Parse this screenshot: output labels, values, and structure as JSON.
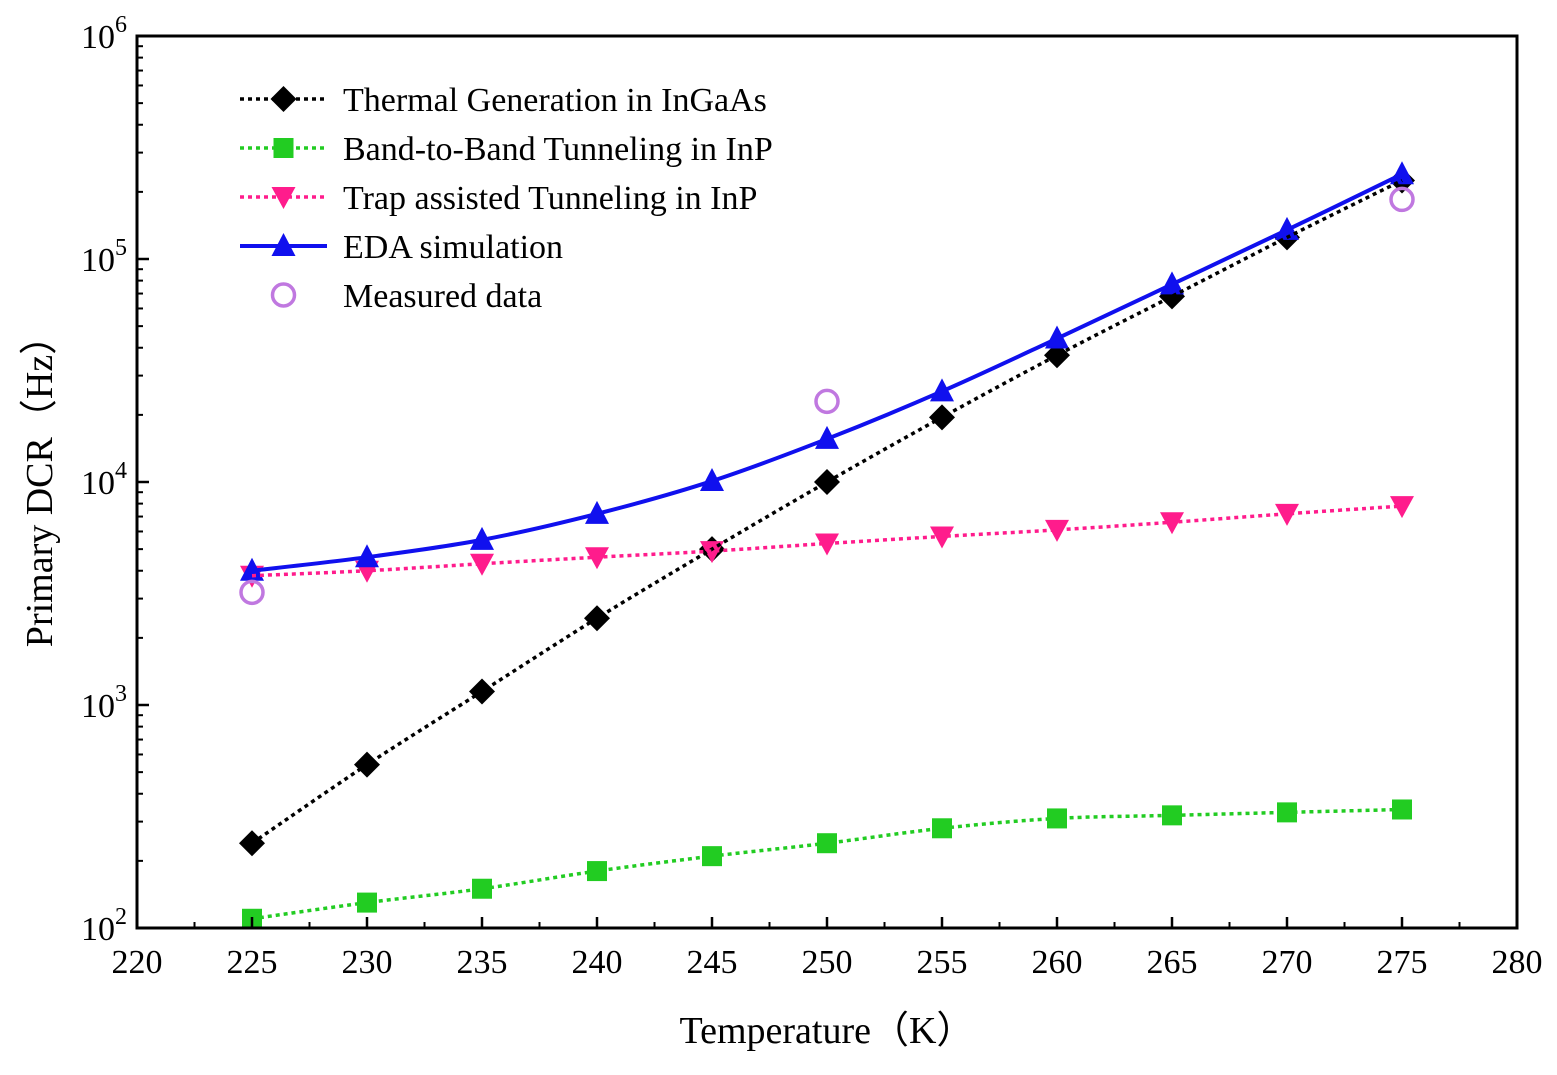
{
  "chart_data": {
    "type": "line",
    "title": "",
    "xlabel": "Temperature（K）",
    "ylabel": "Primary DCR（Hz）",
    "xlim": [
      220,
      280
    ],
    "ylim": [
      100,
      1000000
    ],
    "yscale": "log",
    "grid": false,
    "legend_position": "top-left",
    "x_ticks": [
      "220",
      "225",
      "230",
      "235",
      "240",
      "245",
      "250",
      "255",
      "260",
      "265",
      "270",
      "275",
      "280"
    ],
    "x_tick_values": [
      220,
      225,
      230,
      235,
      240,
      245,
      250,
      255,
      260,
      265,
      270,
      275,
      280
    ],
    "y_ticks": [
      {
        "value": 100,
        "base": "10",
        "exp": "2"
      },
      {
        "value": 1000,
        "base": "10",
        "exp": "3"
      },
      {
        "value": 10000,
        "base": "10",
        "exp": "4"
      },
      {
        "value": 100000,
        "base": "10",
        "exp": "5"
      },
      {
        "value": 1000000,
        "base": "10",
        "exp": "6"
      }
    ],
    "series": [
      {
        "name": "Thermal Generation in InGaAs",
        "color": "#000000",
        "line": "dotted",
        "marker": "diamond",
        "x": [
          225,
          230,
          235,
          240,
          245,
          250,
          255,
          260,
          265,
          270,
          275
        ],
        "values": [
          240,
          540,
          1150,
          2450,
          5000,
          10000,
          19500,
          37000,
          68000,
          125000,
          225000
        ]
      },
      {
        "name": "Band-to-Band Tunneling in InP",
        "color": "#22cc22",
        "line": "dotted",
        "marker": "square",
        "x": [
          225,
          230,
          235,
          240,
          245,
          250,
          255,
          260,
          265,
          270,
          275
        ],
        "values": [
          110,
          130,
          150,
          180,
          210,
          240,
          280,
          310,
          320,
          330,
          340
        ]
      },
      {
        "name": "Trap assisted Tunneling in InP",
        "color": "#ff1c8c",
        "line": "dotted",
        "marker": "triangle-down",
        "x": [
          225,
          230,
          235,
          240,
          245,
          250,
          255,
          260,
          265,
          270,
          275
        ],
        "values": [
          3800,
          4000,
          4300,
          4600,
          4900,
          5300,
          5700,
          6100,
          6600,
          7200,
          7800
        ]
      },
      {
        "name": "EDA simulation",
        "color": "#1010ee",
        "line": "solid",
        "marker": "triangle-up",
        "x": [
          225,
          230,
          235,
          240,
          245,
          250,
          255,
          260,
          265,
          270,
          275
        ],
        "values": [
          4000,
          4600,
          5500,
          7200,
          10100,
          15600,
          25500,
          44000,
          77000,
          135000,
          240000
        ]
      },
      {
        "name": "Measured data",
        "color": "#c078e0",
        "line": "none",
        "marker": "circle-open",
        "x": [
          225,
          250,
          275
        ],
        "values": [
          3200,
          23000,
          185000
        ]
      }
    ]
  }
}
